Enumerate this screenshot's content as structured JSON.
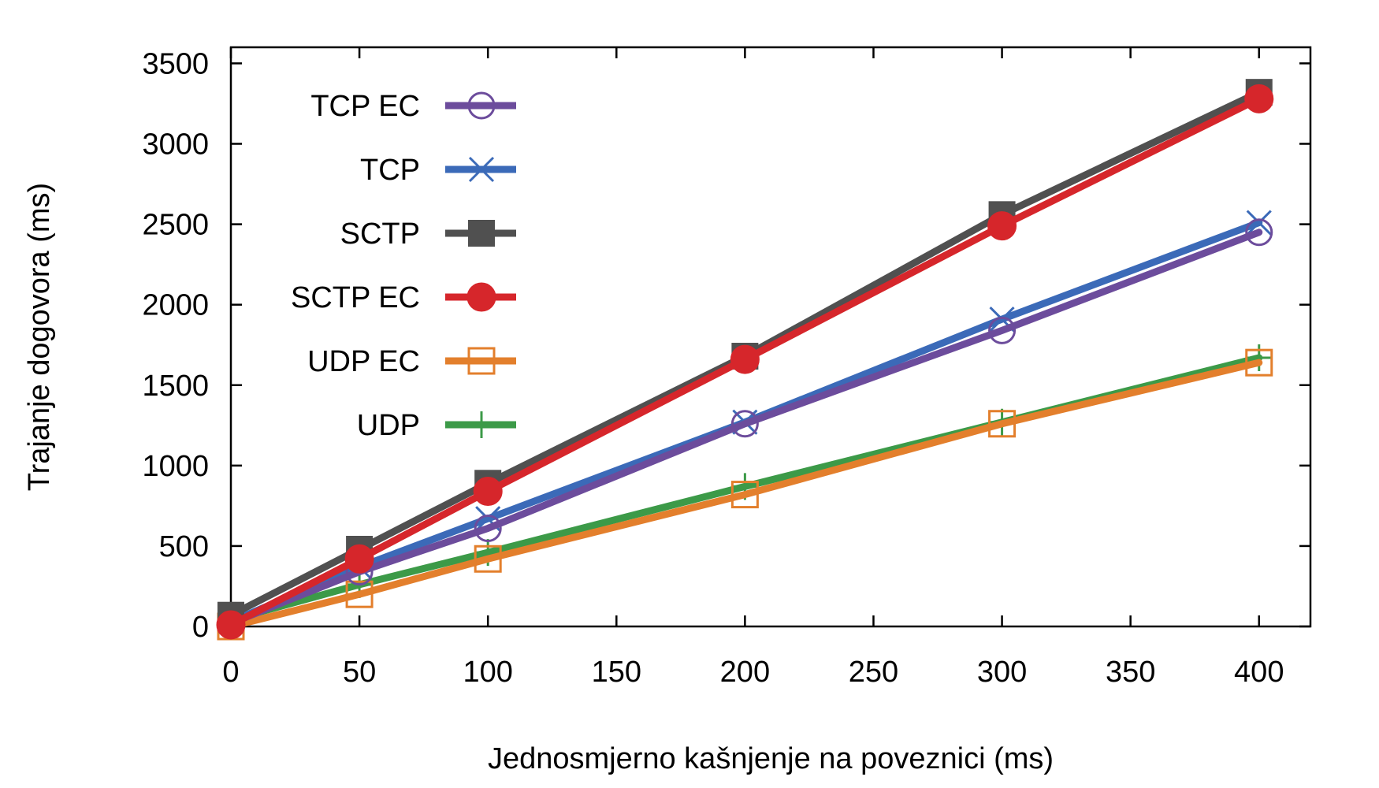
{
  "chart_data": {
    "type": "line",
    "title": "",
    "xlabel": "Jednosmjerno kašnjenje na poveznici (ms)",
    "ylabel": "Trajanje dogovora (ms)",
    "xlim": [
      0,
      420
    ],
    "ylim": [
      0,
      3600
    ],
    "xticks": [
      0,
      50,
      100,
      150,
      200,
      250,
      300,
      350,
      400
    ],
    "yticks": [
      0,
      500,
      1000,
      1500,
      2000,
      2500,
      3000,
      3500
    ],
    "grid": false,
    "legend_position": "top-left",
    "x": [
      0,
      50,
      100,
      200,
      300,
      400
    ],
    "series": [
      {
        "name": "TCP EC",
        "color": "#6c4c9c",
        "marker": "open-circle",
        "values": [
          20,
          340,
          610,
          1260,
          1840,
          2450
        ]
      },
      {
        "name": "TCP",
        "color": "#3b6ab8",
        "marker": "x",
        "values": [
          30,
          370,
          670,
          1270,
          1910,
          2510
        ]
      },
      {
        "name": "SCTP",
        "color": "#505050",
        "marker": "filled-square",
        "values": [
          70,
          480,
          890,
          1680,
          2560,
          3320
        ]
      },
      {
        "name": "SCTP EC",
        "color": "#d6262b",
        "marker": "filled-circle",
        "values": [
          10,
          420,
          840,
          1660,
          2490,
          3280
        ]
      },
      {
        "name": "UDP EC",
        "color": "#e37f2c",
        "marker": "open-square",
        "values": [
          0,
          200,
          420,
          820,
          1260,
          1640
        ]
      },
      {
        "name": "UDP",
        "color": "#3c9a48",
        "marker": "plus",
        "values": [
          40,
          260,
          460,
          870,
          1270,
          1670
        ]
      }
    ]
  }
}
